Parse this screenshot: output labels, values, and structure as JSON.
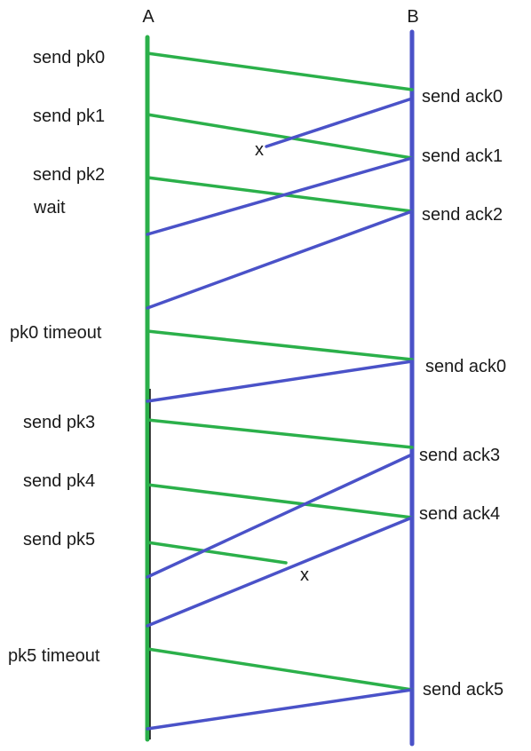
{
  "entities": {
    "sender": "A",
    "receiver": "B"
  },
  "colors": {
    "data_packet": "#2bb04a",
    "ack": "#4a52c8",
    "sender_line": "#2bb04a",
    "receiver_line": "#4a52c8",
    "text": "#1a1a1a"
  },
  "sender_events": {
    "send_pk0": "send pk0",
    "send_pk1": "send pk1",
    "send_pk2": "send pk2",
    "wait": "wait",
    "pk0_timeout": "pk0 timeout",
    "send_pk3": "send pk3",
    "send_pk4": "send pk4",
    "send_pk5": "send pk5",
    "pk5_timeout": "pk5 timeout"
  },
  "receiver_events": {
    "send_ack0_first": "send ack0",
    "send_ack1": "send ack1",
    "send_ack2": "send ack2",
    "send_ack0_second": "send ack0",
    "send_ack3": "send ack3",
    "send_ack4": "send ack4",
    "send_ack5": "send ack5"
  },
  "loss_marks": {
    "ack0_lost": "x",
    "pk5_lost": "x"
  },
  "messages": [
    {
      "kind": "data",
      "label": "pk0",
      "lost": false
    },
    {
      "kind": "ack",
      "label": "ack0",
      "lost": true
    },
    {
      "kind": "data",
      "label": "pk1",
      "lost": false
    },
    {
      "kind": "ack",
      "label": "ack1",
      "lost": false
    },
    {
      "kind": "data",
      "label": "pk2",
      "lost": false
    },
    {
      "kind": "ack",
      "label": "ack2",
      "lost": false
    },
    {
      "kind": "data",
      "label": "pk0",
      "lost": false
    },
    {
      "kind": "ack",
      "label": "ack0",
      "lost": false
    },
    {
      "kind": "data",
      "label": "pk3",
      "lost": false
    },
    {
      "kind": "ack",
      "label": "ack3",
      "lost": false
    },
    {
      "kind": "data",
      "label": "pk4",
      "lost": false
    },
    {
      "kind": "ack",
      "label": "ack4",
      "lost": false
    },
    {
      "kind": "data",
      "label": "pk5",
      "lost": true
    },
    {
      "kind": "data",
      "label": "pk5",
      "lost": false
    },
    {
      "kind": "ack",
      "label": "ack5",
      "lost": false
    }
  ]
}
